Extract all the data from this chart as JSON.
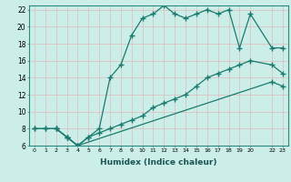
{
  "xlabel": "Humidex (Indice chaleur)",
  "ylabel": "",
  "bg_color": "#cceee8",
  "grid_color": "#aaddcc",
  "line_color": "#1a7a6e",
  "xlim": [
    -0.5,
    23.5
  ],
  "ylim": [
    6,
    22.5
  ],
  "xtick_positions": [
    0,
    1,
    2,
    3,
    4,
    5,
    6,
    7,
    8,
    9,
    10,
    11,
    12,
    13,
    14,
    15,
    16,
    17,
    18,
    19,
    20,
    22,
    23
  ],
  "xtick_labels": [
    "0",
    "1",
    "2",
    "3",
    "4",
    "5",
    "6",
    "7",
    "8",
    "9",
    "10",
    "11",
    "12",
    "13",
    "14",
    "15",
    "16",
    "17",
    "18",
    "19",
    "20",
    "22",
    "23"
  ],
  "yticks": [
    6,
    8,
    10,
    12,
    14,
    16,
    18,
    20,
    22
  ],
  "line1_x": [
    0,
    1,
    2,
    3,
    4,
    5,
    6,
    7,
    8,
    9,
    10,
    11,
    12,
    13,
    14,
    15,
    16,
    17,
    18,
    19,
    20,
    22,
    23
  ],
  "line1_y": [
    8,
    8,
    8,
    7,
    6,
    7,
    8,
    14,
    15.5,
    19,
    21,
    21.5,
    22.5,
    21.5,
    21,
    21.5,
    22,
    21.5,
    22,
    17.5,
    21.5,
    17.5,
    17.5
  ],
  "line2_x": [
    2,
    3,
    4,
    5,
    6,
    7,
    8,
    9,
    10,
    11,
    12,
    13,
    14,
    15,
    16,
    17,
    18,
    19,
    20,
    22,
    23
  ],
  "line2_y": [
    8,
    7,
    6,
    7,
    7.5,
    8,
    8.5,
    9,
    9.5,
    10.5,
    11,
    11.5,
    12,
    13,
    14,
    14.5,
    15,
    15.5,
    16,
    15.5,
    14.5
  ],
  "line3_x": [
    0,
    1,
    2,
    3,
    4,
    22,
    23
  ],
  "line3_y": [
    8,
    8,
    8,
    7,
    6,
    13.5,
    13
  ]
}
